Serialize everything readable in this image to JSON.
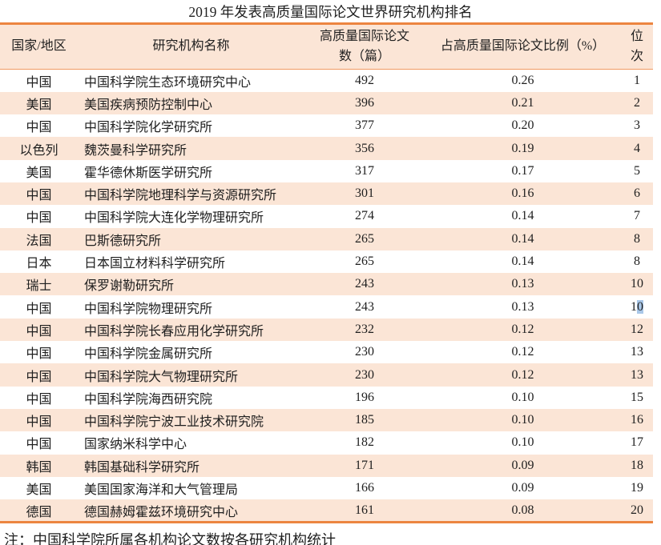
{
  "title": "2019 年发表高质量国际论文世界研究机构排名",
  "note": "注：中国科学院所属各机构论文数按各研究机构统计",
  "colors": {
    "accent_border": "#ec8540",
    "header_divider": "#f09a62",
    "row_stripe": "#fbe5d6",
    "header_bg": "#fbe5d6",
    "selection_highlight": "#a9c7e8",
    "text": "#1f1f1f"
  },
  "table": {
    "headers": [
      {
        "key": "country",
        "lines": [
          "国家/地区"
        ]
      },
      {
        "key": "institution",
        "lines": [
          "研究机构名称"
        ]
      },
      {
        "key": "papers",
        "lines": [
          "高质量国际论文",
          "数（篇）"
        ]
      },
      {
        "key": "ratio",
        "lines": [
          "占高质量国际论文比例（%）"
        ]
      },
      {
        "key": "rank",
        "lines": [
          "位",
          "次"
        ]
      }
    ],
    "rows": [
      {
        "country": "中国",
        "institution": "中国科学院生态环境研究中心",
        "papers": "492",
        "ratio": "0.26",
        "rank": "1"
      },
      {
        "country": "美国",
        "institution": "美国疾病预防控制中心",
        "papers": "396",
        "ratio": "0.21",
        "rank": "2"
      },
      {
        "country": "中国",
        "institution": "中国科学院化学研究所",
        "papers": "377",
        "ratio": "0.20",
        "rank": "3"
      },
      {
        "country": "以色列",
        "institution": "魏茨曼科学研究所",
        "papers": "356",
        "ratio": "0.19",
        "rank": "4"
      },
      {
        "country": "美国",
        "institution": "霍华德休斯医学研究所",
        "papers": "317",
        "ratio": "0.17",
        "rank": "5"
      },
      {
        "country": "中国",
        "institution": "中国科学院地理科学与资源研究所",
        "papers": "301",
        "ratio": "0.16",
        "rank": "6"
      },
      {
        "country": "中国",
        "institution": "中国科学院大连化学物理研究所",
        "papers": "274",
        "ratio": "0.14",
        "rank": "7"
      },
      {
        "country": "法国",
        "institution": "巴斯德研究所",
        "papers": "265",
        "ratio": "0.14",
        "rank": "8"
      },
      {
        "country": "日本",
        "institution": "日本国立材料科学研究所",
        "papers": "265",
        "ratio": "0.14",
        "rank": "8"
      },
      {
        "country": "瑞士",
        "institution": "保罗谢勒研究所",
        "papers": "243",
        "ratio": "0.13",
        "rank": "10"
      },
      {
        "country": "中国",
        "institution": "中国科学院物理研究所",
        "papers": "243",
        "ratio": "0.13",
        "rank": "10",
        "rank_selected_char": "0"
      },
      {
        "country": "中国",
        "institution": "中国科学院长春应用化学研究所",
        "papers": "232",
        "ratio": "0.12",
        "rank": "12"
      },
      {
        "country": "中国",
        "institution": "中国科学院金属研究所",
        "papers": "230",
        "ratio": "0.12",
        "rank": "13"
      },
      {
        "country": "中国",
        "institution": "中国科学院大气物理研究所",
        "papers": "230",
        "ratio": "0.12",
        "rank": "13"
      },
      {
        "country": "中国",
        "institution": "中国科学院海西研究院",
        "papers": "196",
        "ratio": "0.10",
        "rank": "15"
      },
      {
        "country": "中国",
        "institution": "中国科学院宁波工业技术研究院",
        "papers": "185",
        "ratio": "0.10",
        "rank": "16"
      },
      {
        "country": "中国",
        "institution": "国家纳米科学中心",
        "papers": "182",
        "ratio": "0.10",
        "rank": "17"
      },
      {
        "country": "韩国",
        "institution": "韩国基础科学研究所",
        "papers": "171",
        "ratio": "0.09",
        "rank": "18"
      },
      {
        "country": "美国",
        "institution": "美国国家海洋和大气管理局",
        "papers": "166",
        "ratio": "0.09",
        "rank": "19"
      },
      {
        "country": "德国",
        "institution": "德国赫姆霍兹环境研究中心",
        "papers": "161",
        "ratio": "0.08",
        "rank": "20"
      }
    ]
  }
}
